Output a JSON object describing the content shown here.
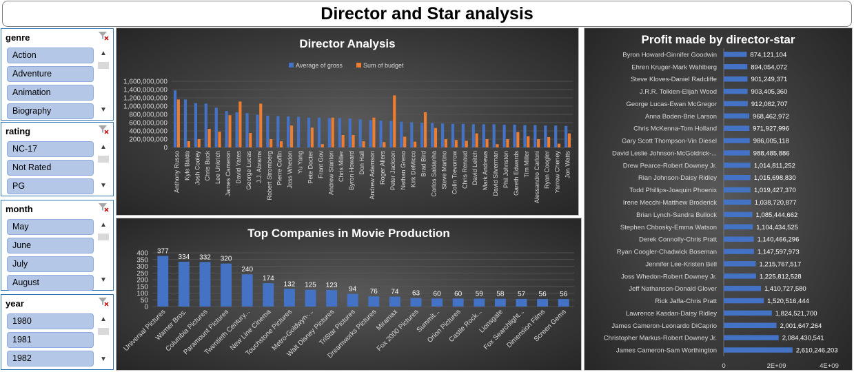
{
  "page": {
    "title": "Director and Star analysis"
  },
  "slicers": {
    "genre": {
      "label": "genre",
      "items": [
        "Action",
        "Adventure",
        "Animation",
        "Biography"
      ]
    },
    "rating": {
      "label": "rating",
      "items": [
        "NC-17",
        "Not Rated",
        "PG"
      ]
    },
    "month": {
      "label": "month",
      "items": [
        "May",
        "June",
        "July",
        "August"
      ]
    },
    "year": {
      "label": "year",
      "items": [
        "1980",
        "1981",
        "1982"
      ]
    }
  },
  "icons": {
    "clear_filter": "clear-filter-icon",
    "scroll_up": "chevron-up-icon",
    "scroll_down": "chevron-down-icon"
  },
  "colors": {
    "gross": "#4472c4",
    "budget": "#ed7d31",
    "bar": "#4472c4"
  },
  "chart_data": [
    {
      "type": "bar",
      "title": "Director Analysis",
      "legend_position": "top",
      "categories": [
        "Anthony Russo",
        "Kyle Balda",
        "Josh Cooley",
        "Chris Buck",
        "Lee Unkrich",
        "James Cameron",
        "David Yates",
        "George Lucas",
        "J.J. Abrams",
        "Robert Stromberg",
        "Pierre Coffin",
        "Joss Whedon",
        "Yu Yang",
        "Pete Docter",
        "Frant Gov",
        "Andrew Stanton",
        "Chris Miller",
        "Byron Howard",
        "Don Hall",
        "Andrew Adamson",
        "Roger Allers",
        "Peter Jackson",
        "Nathan Greno",
        "Kirk DeMicco",
        "Brad Bird",
        "Carlos Saldanha",
        "Steve Martino",
        "Colin Trevorrow",
        "Chris Renaud",
        "David Leitch",
        "Mark Andrews",
        "David Silverman",
        "Phil Johnston",
        "Gareth Edwards",
        "Tim Miller",
        "Alessandro Carloni",
        "Ryan Coogler",
        "Yarrow Cheney",
        "Jon Watts"
      ],
      "series": [
        {
          "name": "Average of gross",
          "values": [
            1380000000,
            1160000000,
            1070000000,
            1060000000,
            960000000,
            880000000,
            850000000,
            830000000,
            790000000,
            770000000,
            760000000,
            750000000,
            740000000,
            720000000,
            720000000,
            710000000,
            710000000,
            700000000,
            680000000,
            660000000,
            650000000,
            640000000,
            620000000,
            610000000,
            600000000,
            590000000,
            580000000,
            570000000,
            570000000,
            560000000,
            560000000,
            560000000,
            550000000,
            550000000,
            540000000,
            540000000,
            530000000,
            530000000,
            520000000
          ]
        },
        {
          "name": "Sum of budget",
          "values": [
            1160000000,
            150000000,
            200000000,
            450000000,
            380000000,
            780000000,
            1110000000,
            350000000,
            1060000000,
            200000000,
            150000000,
            530000000,
            0,
            480000000,
            80000000,
            720000000,
            300000000,
            300000000,
            150000000,
            720000000,
            130000000,
            1260000000,
            260000000,
            140000000,
            850000000,
            470000000,
            200000000,
            180000000,
            160000000,
            340000000,
            200000000,
            80000000,
            200000000,
            370000000,
            270000000,
            200000000,
            250000000,
            90000000,
            340000000
          ]
        }
      ],
      "ylim": [
        0,
        1600000000
      ],
      "yticks": [
        "0",
        "200,000,000",
        "400,000,000",
        "600,000,000",
        "800,000,000",
        "1,000,000,000",
        "1,200,000,000",
        "1,400,000,000",
        "1,600,000,000"
      ],
      "grid": true
    },
    {
      "type": "bar",
      "title": "Top Companies in Movie Production",
      "categories": [
        "Universal Pictures",
        "Warner Bros.",
        "Columbia Pictures",
        "Paramount Pictures",
        "Twentieth Century...",
        "New Line Cinema",
        "Touchstone Pictures",
        "Metro-Goldwyn-...",
        "Walt Disney Pictures",
        "TriStar Pictures",
        "Dreamworks Pictures",
        "Miramax",
        "Fox 2000 Pictures",
        "Summit...",
        "Orion Pictures",
        "Castle Rock...",
        "Lionsgate",
        "Fox Searchlight...",
        "Dimension Films",
        "Screen Gems"
      ],
      "values": [
        377,
        334,
        332,
        320,
        240,
        174,
        132,
        125,
        123,
        94,
        76,
        74,
        63,
        60,
        60,
        59,
        58,
        57,
        56,
        56
      ],
      "data_labels": [
        "377",
        "334",
        "332",
        "320",
        "240",
        "174",
        "132",
        "125",
        "123",
        "94",
        "76",
        "74",
        "63",
        "60",
        "60",
        "59",
        "58",
        "57",
        "56",
        "56"
      ],
      "ylim": [
        0,
        400
      ],
      "yticks": [
        "0",
        "50",
        "100",
        "150",
        "200",
        "250",
        "300",
        "350",
        "400"
      ],
      "grid": true
    },
    {
      "type": "bar",
      "orientation": "horizontal",
      "title": "Profit made by director-star",
      "categories": [
        "Byron Howard-Ginnifer Goodwin",
        "Ehren Kruger-Mark Wahlberg",
        "Steve Kloves-Daniel Radcliffe",
        "J.R.R. Tolkien-Elijah Wood",
        "George Lucas-Ewan McGregor",
        "Anna Boden-Brie Larson",
        "Chris McKenna-Tom Holland",
        "Gary Scott Thompson-Vin Diesel",
        "David Leslie Johnson-McGoldrick-...",
        "Drew Pearce-Robert Downey Jr.",
        "Rian Johnson-Daisy Ridley",
        "Todd Phillips-Joaquin Phoenix",
        "Irene Mecchi-Matthew Broderick",
        "Brian Lynch-Sandra Bullock",
        "Stephen Chbosky-Emma Watson",
        "Derek Connolly-Chris Pratt",
        "Ryan Coogler-Chadwick Boseman",
        "Jennifer Lee-Kristen Bell",
        "Joss Whedon-Robert Downey Jr.",
        "Jeff Nathanson-Donald Glover",
        "Rick Jaffa-Chris Pratt",
        "Lawrence Kasdan-Daisy Ridley",
        "James Cameron-Leonardo DiCaprio",
        "Christopher Markus-Robert Downey Jr.",
        "James Cameron-Sam Worthington"
      ],
      "values": [
        874121104,
        894054072,
        901249371,
        903405360,
        912082707,
        968462972,
        971927996,
        986005118,
        988485886,
        1014811252,
        1015698830,
        1019427370,
        1038720877,
        1085444662,
        1104434525,
        1140466296,
        1147597973,
        1215767517,
        1225812528,
        1410727580,
        1520516444,
        1824521700,
        2001647264,
        2084430541,
        2610246203
      ],
      "data_labels": [
        "874,121,104",
        "894,054,072",
        "901,249,371",
        "903,405,360",
        "912,082,707",
        "968,462,972",
        "971,927,996",
        "986,005,118",
        "988,485,886",
        "1,014,811,252",
        "1,015,698,830",
        "1,019,427,370",
        "1,038,720,877",
        "1,085,444,662",
        "1,104,434,525",
        "1,140,466,296",
        "1,147,597,973",
        "1,215,767,517",
        "1,225,812,528",
        "1,410,727,580",
        "1,520,516,444",
        "1,824,521,700",
        "2,001,647,264",
        "2,084,430,541",
        "2,610,246,203"
      ],
      "xlim": [
        0,
        4000000000
      ],
      "xticks": [
        "0",
        "2E+09",
        "4E+09"
      ]
    }
  ]
}
